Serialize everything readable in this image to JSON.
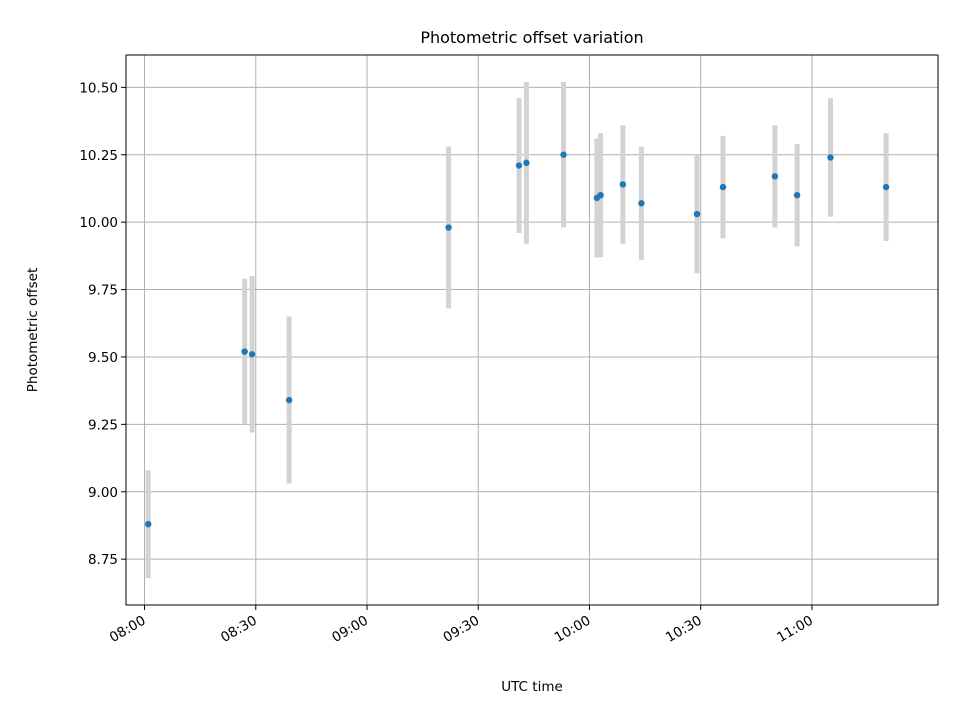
{
  "chart_data": {
    "type": "scatter",
    "title": "Photometric offset variation",
    "xlabel": "UTC time",
    "ylabel": "Photometric offset",
    "x_axis": {
      "type": "time",
      "min": "07:55",
      "max": "11:34",
      "ticks": [
        "08:00",
        "08:30",
        "09:00",
        "09:30",
        "10:00",
        "10:30",
        "11:00"
      ]
    },
    "y_axis": {
      "min": 8.58,
      "max": 10.62,
      "ticks": [
        "8.75",
        "9.00",
        "9.25",
        "9.50",
        "9.75",
        "10.00",
        "10.25",
        "10.50"
      ]
    },
    "grid": true,
    "legend": "none",
    "colors": {
      "point": "#1f77b4",
      "errorbar": "#d3d3d3",
      "grid": "#b0b0b0"
    },
    "series": [
      {
        "points": [
          {
            "x": "08:01",
            "y": 8.88,
            "err": 0.2
          },
          {
            "x": "08:27",
            "y": 9.52,
            "err": 0.27
          },
          {
            "x": "08:29",
            "y": 9.51,
            "err": 0.29
          },
          {
            "x": "08:39",
            "y": 9.34,
            "err": 0.31
          },
          {
            "x": "09:22",
            "y": 9.98,
            "err": 0.3
          },
          {
            "x": "09:41",
            "y": 10.21,
            "err": 0.25
          },
          {
            "x": "09:43",
            "y": 10.22,
            "err": 0.3
          },
          {
            "x": "09:53",
            "y": 10.25,
            "err": 0.27
          },
          {
            "x": "10:02",
            "y": 10.09,
            "err": 0.22
          },
          {
            "x": "10:03",
            "y": 10.1,
            "err": 0.23
          },
          {
            "x": "10:09",
            "y": 10.14,
            "err": 0.22
          },
          {
            "x": "10:14",
            "y": 10.07,
            "err": 0.21
          },
          {
            "x": "10:29",
            "y": 10.03,
            "err": 0.22
          },
          {
            "x": "10:36",
            "y": 10.13,
            "err": 0.19
          },
          {
            "x": "10:50",
            "y": 10.17,
            "err": 0.19
          },
          {
            "x": "10:56",
            "y": 10.1,
            "err": 0.19
          },
          {
            "x": "11:05",
            "y": 10.24,
            "err": 0.22
          },
          {
            "x": "11:20",
            "y": 10.13,
            "err": 0.2
          }
        ]
      }
    ]
  }
}
